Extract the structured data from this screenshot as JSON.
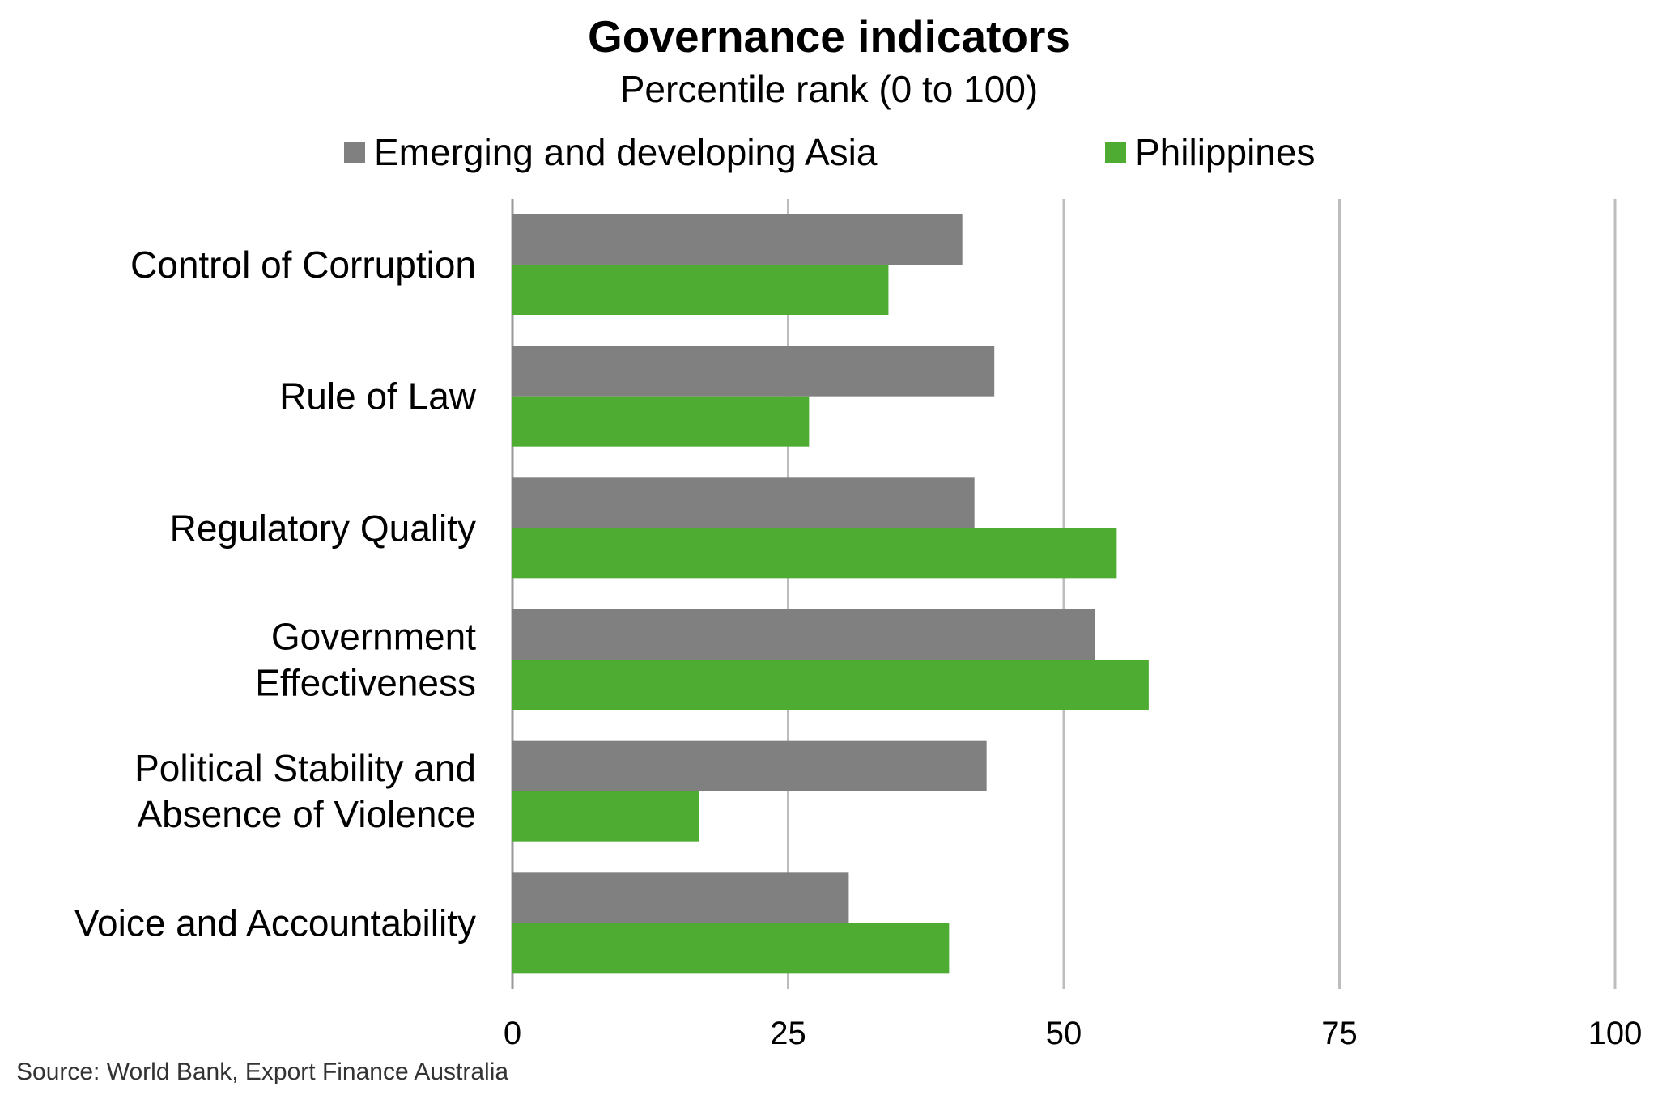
{
  "chart_data": {
    "type": "bar",
    "orientation": "horizontal",
    "title": "Governance indicators",
    "subtitle": "Percentile rank (0 to 100)",
    "source": "Source: World Bank, Export Finance Australia",
    "categories": [
      [
        "Control of Corruption"
      ],
      [
        "Rule of Law"
      ],
      [
        "Regulatory Quality"
      ],
      [
        "Government",
        "Effectiveness"
      ],
      [
        "Political Stability and",
        "Absence of Violence"
      ],
      [
        "Voice and Accountability"
      ]
    ],
    "series": [
      {
        "name": "Emerging and developing Asia",
        "color": "#808080",
        "values": [
          40.8,
          43.7,
          41.9,
          52.8,
          43.0,
          30.5
        ]
      },
      {
        "name": "Philippines",
        "color": "#4EAC33",
        "values": [
          34.1,
          26.9,
          54.8,
          57.7,
          16.9,
          39.6
        ]
      }
    ],
    "xlim": [
      0,
      100
    ],
    "xticks": [
      "0",
      "25",
      "50",
      "75",
      "100"
    ],
    "xtick_values": [
      0,
      25,
      50,
      75,
      100
    ],
    "grid": true,
    "legend_position": "top-center"
  }
}
